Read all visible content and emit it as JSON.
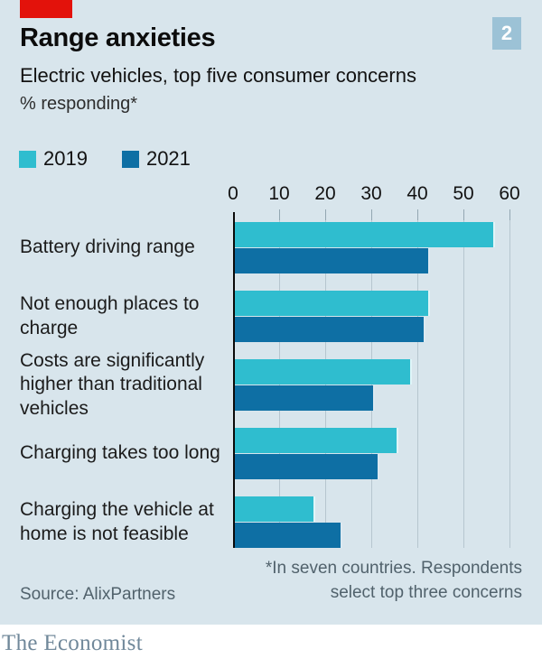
{
  "header": {
    "tag_color": "#E3120B",
    "index_badge": "2",
    "index_badge_color": "#9cc2d6",
    "title": "Range anxieties",
    "subtitle": "Electric vehicles, top five consumer concerns",
    "unit_line": "% responding*"
  },
  "legend": [
    {
      "label": "2019",
      "color": "#2fbdcf"
    },
    {
      "label": "2021",
      "color": "#0e6fa4"
    }
  ],
  "chart_data": {
    "type": "bar",
    "orientation": "horizontal",
    "title": "Range anxieties",
    "subtitle": "Electric vehicles, top five consumer concerns",
    "xlabel": "% responding",
    "categories": [
      "Battery driving range",
      "Not enough places to charge",
      "Costs are significantly higher than traditional vehicles",
      "Charging takes too long",
      "Charging the vehicle at home is not feasible"
    ],
    "series": [
      {
        "name": "2019",
        "color": "#2fbdcf",
        "values": [
          56,
          42,
          38,
          35,
          17
        ]
      },
      {
        "name": "2021",
        "color": "#0e6fa4",
        "values": [
          42,
          41,
          30,
          31,
          23
        ]
      }
    ],
    "xlim": [
      0,
      60
    ],
    "xticks": [
      0,
      10,
      20,
      30,
      40,
      50,
      60
    ],
    "grid": true,
    "legend_position": "top-left"
  },
  "footer": {
    "footnote_line1": "*In seven countries. Respondents",
    "footnote_line2": "select top three concerns",
    "source": "Source: AlixPartners",
    "brand": "The Economist"
  }
}
